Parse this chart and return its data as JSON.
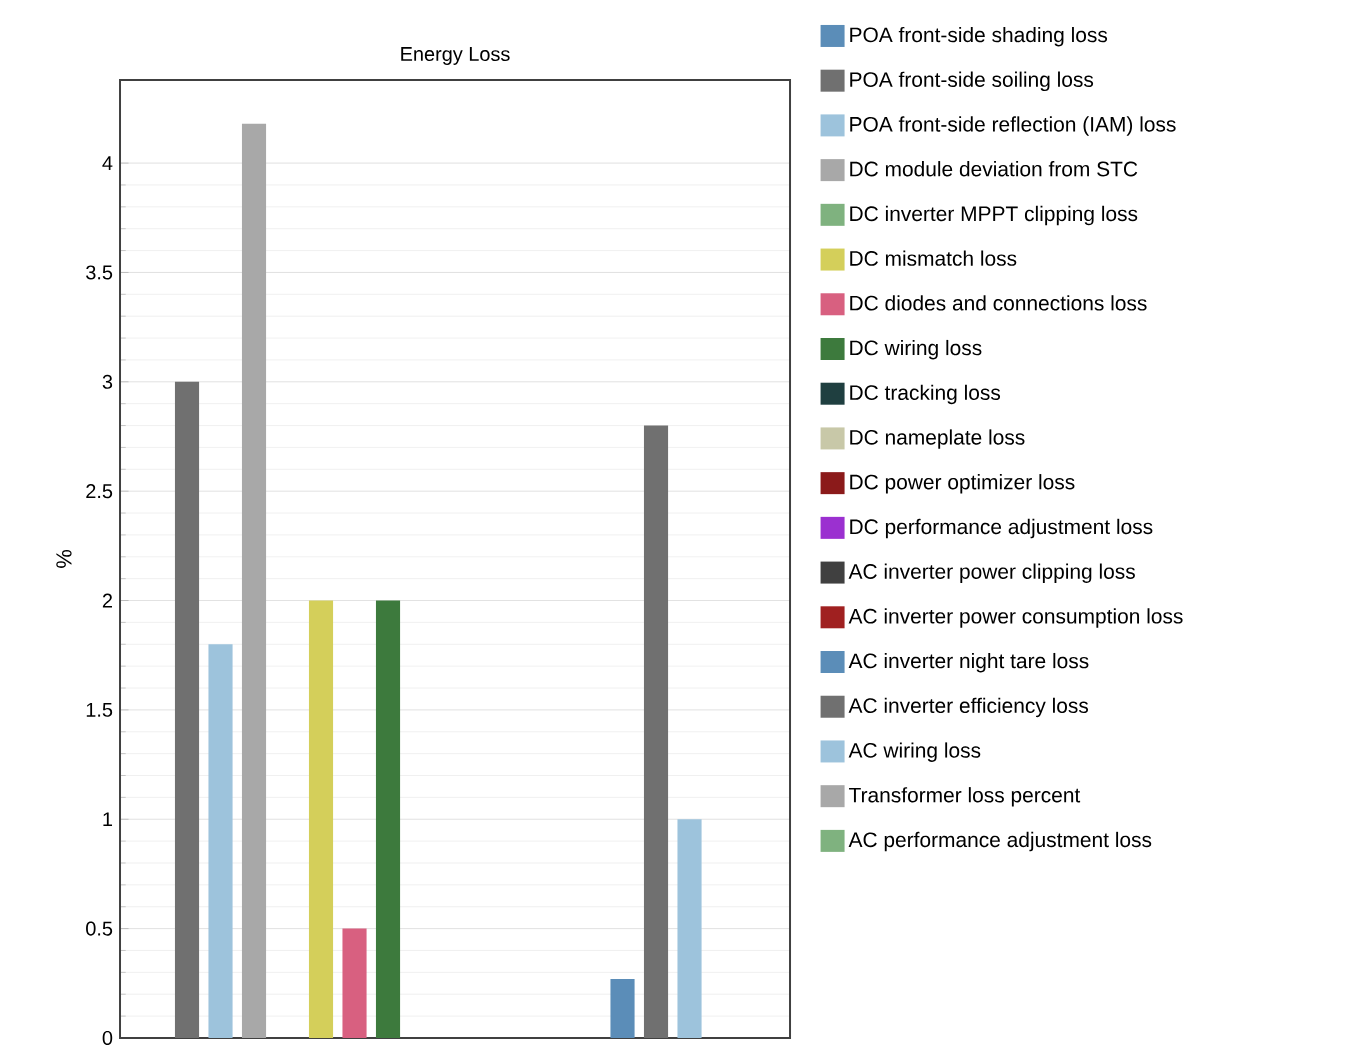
{
  "chart_data": {
    "type": "bar",
    "title": "Energy Loss",
    "ylabel": "%",
    "categories": [
      null
    ],
    "ylim": [
      0,
      4.38
    ],
    "yticks": [
      0,
      0.5,
      1,
      1.5,
      2,
      2.5,
      3,
      3.5,
      4
    ],
    "grid": "y",
    "legend": "right",
    "series": [
      {
        "name": "POA front-side shading loss",
        "color": "#5b8db8",
        "values": [
          0
        ]
      },
      {
        "name": "POA front-side soiling loss",
        "color": "#707070",
        "values": [
          3.0
        ]
      },
      {
        "name": "POA front-side reflection (IAM) loss",
        "color": "#9dc3dc",
        "values": [
          1.8
        ]
      },
      {
        "name": "DC module deviation from STC",
        "color": "#a8a8a8",
        "values": [
          4.18
        ]
      },
      {
        "name": "DC inverter MPPT clipping loss",
        "color": "#7fb27f",
        "values": [
          0
        ]
      },
      {
        "name": "DC mismatch loss",
        "color": "#d4cf5a",
        "values": [
          2.0
        ]
      },
      {
        "name": "DC diodes and connections loss",
        "color": "#d86080",
        "values": [
          0.5
        ]
      },
      {
        "name": "DC wiring loss",
        "color": "#3d7a3d",
        "values": [
          2.0
        ]
      },
      {
        "name": "DC tracking loss",
        "color": "#1f3f40",
        "values": [
          0
        ]
      },
      {
        "name": "DC nameplate loss",
        "color": "#c8c8a8",
        "values": [
          0
        ]
      },
      {
        "name": "DC power optimizer loss",
        "color": "#8b1a1a",
        "values": [
          0
        ]
      },
      {
        "name": "DC performance adjustment loss",
        "color": "#9b30d0",
        "values": [
          0
        ]
      },
      {
        "name": "AC inverter power clipping loss",
        "color": "#404040",
        "values": [
          0
        ]
      },
      {
        "name": "AC inverter power consumption loss",
        "color": "#a02020",
        "values": [
          0
        ]
      },
      {
        "name": "AC inverter night tare loss",
        "color": "#5b8db8",
        "values": [
          0.27
        ]
      },
      {
        "name": "AC inverter efficiency loss",
        "color": "#707070",
        "values": [
          2.8
        ]
      },
      {
        "name": "AC wiring loss",
        "color": "#9dc3dc",
        "values": [
          1.0
        ]
      },
      {
        "name": "Transformer loss percent",
        "color": "#a8a8a8",
        "values": [
          0
        ]
      },
      {
        "name": "AC performance adjustment loss",
        "color": "#7fb27f",
        "values": [
          0
        ]
      }
    ]
  }
}
